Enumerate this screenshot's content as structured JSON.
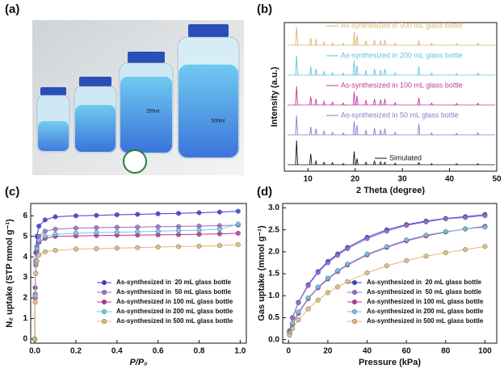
{
  "panel_labels": [
    "(a)",
    "(b)",
    "(c)",
    "(d)"
  ],
  "photo": {
    "labels": [
      "250ml",
      "500ml"
    ]
  },
  "chart_data": [
    {
      "type": "spectrum",
      "xlabel": "2 Theta (degree)",
      "ylabel": "Intensity (a.u.)",
      "xlim": [
        5,
        50
      ],
      "xticks": [
        10,
        20,
        30,
        40,
        50
      ],
      "x": [
        7.6,
        10.6,
        11.7,
        13.4,
        15.2,
        17.5,
        19.8,
        20.4,
        22.3,
        24.1,
        25.4,
        26.3,
        28.5,
        33.5,
        36.2,
        41.5,
        46
      ],
      "series": [
        {
          "name": "As-synthesized in 500 mL glass bottle",
          "color": "#d9b46e",
          "values": [
            75,
            30,
            25,
            12,
            10,
            8,
            55,
            40,
            18,
            22,
            20,
            22,
            9,
            20,
            7,
            6,
            7
          ]
        },
        {
          "name": "As-synthesized in 200 mL glass bottle",
          "color": "#5fc0e0",
          "values": [
            80,
            35,
            25,
            14,
            10,
            8,
            60,
            40,
            20,
            25,
            20,
            25,
            10,
            35,
            8,
            6,
            8
          ]
        },
        {
          "name": "As-synthesized in 100 mL glass bottle",
          "color": "#c0399a",
          "values": [
            78,
            35,
            25,
            15,
            12,
            8,
            55,
            38,
            20,
            25,
            22,
            25,
            10,
            30,
            8,
            6,
            7
          ]
        },
        {
          "name": "As-synthesized in 50 mL glass bottle",
          "color": "#7f7fcc",
          "values": [
            80,
            33,
            25,
            15,
            10,
            8,
            55,
            40,
            20,
            28,
            22,
            25,
            10,
            45,
            8,
            6,
            8
          ]
        },
        {
          "name": "Simulated",
          "color": "#111111",
          "values": [
            100,
            45,
            15,
            10,
            8,
            5,
            55,
            25,
            10,
            15,
            12,
            10,
            6,
            8,
            5,
            4,
            4
          ]
        }
      ]
    },
    {
      "type": "line",
      "xlabel": "P/P₀",
      "ylabel": "N₂ uptake (STP mmol g⁻¹)",
      "xlim": [
        -0.02,
        1.03
      ],
      "xticks": [
        {
          "value": 0,
          "label": "0.0"
        },
        0.2,
        0.4,
        0.6,
        0.8,
        {
          "value": 1,
          "label": "1.0"
        }
      ],
      "ylim": [
        -0.2,
        6.6
      ],
      "yticks": [
        0,
        1,
        2,
        3,
        4,
        5,
        6
      ],
      "legend": "lower right",
      "x": [
        0,
        0.002,
        0.005,
        0.01,
        0.02,
        0.05,
        0.1,
        0.2,
        0.3,
        0.4,
        0.5,
        0.6,
        0.7,
        0.8,
        0.9,
        0.99
      ],
      "series": [
        {
          "name": "As-synthesized in  20 mL glass bottle",
          "color": "#3b3bd6",
          "values": [
            0,
            2.5,
            4.2,
            5.0,
            5.5,
            5.8,
            5.95,
            6.0,
            6.02,
            6.05,
            6.07,
            6.1,
            6.12,
            6.15,
            6.18,
            6.22
          ]
        },
        {
          "name": "As-synthesized in  50 mL glass bottle",
          "color": "#9a6ad0",
          "values": [
            0,
            2.2,
            3.8,
            4.5,
            5.0,
            5.25,
            5.35,
            5.4,
            5.42,
            5.44,
            5.45,
            5.47,
            5.48,
            5.5,
            5.52,
            5.55
          ]
        },
        {
          "name": "As-synthesized in 100 mL glass bottle",
          "color": "#c02fa0",
          "values": [
            0,
            2.0,
            3.6,
            4.3,
            4.7,
            4.9,
            5.0,
            5.02,
            5.04,
            5.05,
            5.06,
            5.07,
            5.08,
            5.1,
            5.12,
            5.15
          ]
        },
        {
          "name": "As-synthesized in 200 mL glass bottle",
          "color": "#6cc8e6",
          "values": [
            0,
            2.1,
            3.7,
            4.4,
            4.8,
            5.0,
            5.1,
            5.15,
            5.18,
            5.2,
            5.22,
            5.25,
            5.28,
            5.3,
            5.35,
            5.6
          ]
        },
        {
          "name": "As-synthesized in 500 mL glass bottle",
          "color": "#e0b870",
          "values": [
            0,
            1.8,
            3.2,
            3.8,
            4.1,
            4.25,
            4.32,
            4.38,
            4.4,
            4.43,
            4.45,
            4.48,
            4.5,
            4.52,
            4.55,
            4.6
          ]
        }
      ]
    },
    {
      "type": "line",
      "xlabel": "Pressure (kPa)",
      "ylabel": "Gas uptake (mmol g⁻¹)",
      "xlim": [
        -3,
        106
      ],
      "xticks": [
        0,
        20,
        40,
        60,
        80,
        100
      ],
      "ylim": [
        -0.08,
        3.1
      ],
      "yticks": [
        {
          "value": 0,
          "label": "0.0"
        },
        0.5,
        {
          "value": 1,
          "label": "1.0"
        },
        1.5,
        {
          "value": 2,
          "label": "2.0"
        },
        2.5,
        {
          "value": 3,
          "label": "3.0"
        }
      ],
      "legend": "lower right",
      "x": [
        0.5,
        2,
        5,
        10,
        15,
        20,
        25,
        30,
        40,
        50,
        60,
        70,
        80,
        90,
        100
      ],
      "series": [
        {
          "name": "As-synthesized in  20 mL glass bottle",
          "color": "#3b3bd6",
          "values": [
            0.2,
            0.5,
            0.85,
            1.25,
            1.55,
            1.78,
            1.95,
            2.1,
            2.33,
            2.5,
            2.62,
            2.7,
            2.76,
            2.8,
            2.85
          ]
        },
        {
          "name": "As-synthesized in  50 mL glass bottle",
          "color": "#9a6ad0",
          "values": [
            0.2,
            0.5,
            0.84,
            1.23,
            1.53,
            1.75,
            1.92,
            2.07,
            2.3,
            2.47,
            2.6,
            2.68,
            2.75,
            2.78,
            2.82
          ]
        },
        {
          "name": "As-synthesized in 100 mL glass bottle",
          "color": "#c02fa0",
          "values": [
            0.15,
            0.35,
            0.6,
            0.93,
            1.18,
            1.38,
            1.55,
            1.7,
            1.93,
            2.1,
            2.25,
            2.36,
            2.45,
            2.52,
            2.58
          ]
        },
        {
          "name": "As-synthesized in 200 mL glass bottle",
          "color": "#6cc8e6",
          "values": [
            0.15,
            0.37,
            0.63,
            0.95,
            1.2,
            1.4,
            1.57,
            1.72,
            1.95,
            2.12,
            2.27,
            2.38,
            2.46,
            2.52,
            2.56
          ]
        },
        {
          "name": "As-synthesized in 500 mL glass bottle",
          "color": "#e0b870",
          "values": [
            0.1,
            0.25,
            0.45,
            0.7,
            0.9,
            1.07,
            1.2,
            1.32,
            1.52,
            1.68,
            1.8,
            1.9,
            1.98,
            2.05,
            2.12
          ]
        }
      ]
    }
  ]
}
